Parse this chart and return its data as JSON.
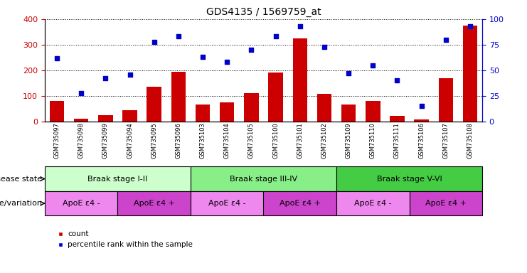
{
  "title": "GDS4135 / 1569759_at",
  "samples": [
    "GSM735097",
    "GSM735098",
    "GSM735099",
    "GSM735094",
    "GSM735095",
    "GSM735096",
    "GSM735103",
    "GSM735104",
    "GSM735105",
    "GSM735100",
    "GSM735101",
    "GSM735102",
    "GSM735109",
    "GSM735110",
    "GSM735111",
    "GSM735106",
    "GSM735107",
    "GSM735108"
  ],
  "counts": [
    80,
    10,
    25,
    45,
    135,
    195,
    65,
    75,
    110,
    190,
    325,
    108,
    65,
    80,
    22,
    8,
    170,
    375
  ],
  "percentiles": [
    62,
    28,
    42,
    46,
    78,
    83,
    63,
    58,
    70,
    83,
    93,
    73,
    47,
    55,
    40,
    15,
    80,
    93
  ],
  "bar_color": "#cc0000",
  "dot_color": "#0000cc",
  "ylim_left": [
    0,
    400
  ],
  "ylim_right": [
    0,
    100
  ],
  "yticks_left": [
    0,
    100,
    200,
    300,
    400
  ],
  "yticks_right": [
    0,
    25,
    50,
    75,
    100
  ],
  "disease_state_groups": [
    {
      "label": "Braak stage I-II",
      "start": 0,
      "end": 6,
      "color": "#ccffcc"
    },
    {
      "label": "Braak stage III-IV",
      "start": 6,
      "end": 12,
      "color": "#88ee88"
    },
    {
      "label": "Braak stage V-VI",
      "start": 12,
      "end": 18,
      "color": "#44cc44"
    }
  ],
  "genotype_groups": [
    {
      "label": "ApoE ε4 -",
      "start": 0,
      "end": 3,
      "color": "#ee88ee"
    },
    {
      "label": "ApoE ε4 +",
      "start": 3,
      "end": 6,
      "color": "#cc44cc"
    },
    {
      "label": "ApoE ε4 -",
      "start": 6,
      "end": 9,
      "color": "#ee88ee"
    },
    {
      "label": "ApoE ε4 +",
      "start": 9,
      "end": 12,
      "color": "#cc44cc"
    },
    {
      "label": "ApoE ε4 -",
      "start": 12,
      "end": 15,
      "color": "#ee88ee"
    },
    {
      "label": "ApoE ε4 +",
      "start": 15,
      "end": 18,
      "color": "#cc44cc"
    }
  ],
  "label_disease_state": "disease state",
  "label_genotype": "genotype/variation",
  "legend_count": "count",
  "legend_percentile": "percentile rank within the sample",
  "background_color": "#ffffff",
  "tick_label_color_left": "#cc0000",
  "tick_label_color_right": "#0000cc"
}
